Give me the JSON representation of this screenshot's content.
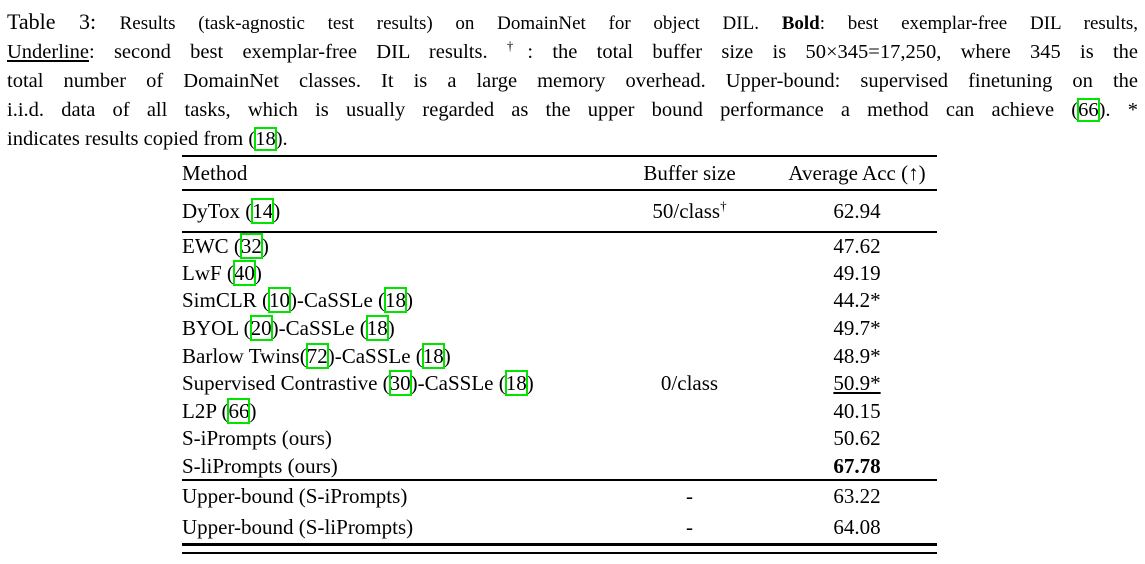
{
  "colors": {
    "background": "#ffffff",
    "text": "#000000",
    "citation_link_box": "#00e400"
  },
  "caption": {
    "lines": [
      [
        {
          "t": "Table 3: ",
          "s": "label"
        },
        {
          "t": "Results (task-agnostic test results) on DomainNet for object DIL. ",
          "s": "small"
        },
        {
          "t": "Bold",
          "s": "small-bold"
        },
        {
          "t": ": best exemplar-free DIL results,",
          "s": "small"
        }
      ],
      [
        {
          "t": "Underline",
          "s": "underline"
        },
        {
          "t": ": second best exemplar-free DIL results. "
        },
        {
          "t": "†",
          "s": "sup"
        },
        {
          "t": ": the total buffer size is 50×345=17,250, where 345 is the"
        }
      ],
      [
        {
          "t": "total number of DomainNet classes. It is a large memory overhead. Upper-bound: supervised finetuning on the"
        }
      ],
      [
        {
          "t": "i.i.d. data of all tasks, which is usually regarded as the upper bound performance a method can achieve ("
        },
        {
          "t": "66",
          "s": "cite"
        },
        {
          "t": "). *"
        }
      ],
      [
        {
          "t": "indicates results copied from ("
        },
        {
          "t": "18",
          "s": "cite"
        },
        {
          "t": ")."
        }
      ]
    ]
  },
  "table": {
    "headers": [
      {
        "id": "method",
        "label": "Method"
      },
      {
        "id": "buffer",
        "label": "Buffer size"
      },
      {
        "id": "acc",
        "label": "Average Acc (↑)"
      }
    ],
    "sections": [
      {
        "name": "buffered-method",
        "rows": [
          {
            "method": [
              {
                "t": "DyTox ("
              },
              {
                "t": "14",
                "s": "cite"
              },
              {
                "t": ")"
              }
            ],
            "buffer": [
              {
                "t": "50/class"
              },
              {
                "t": "†",
                "s": "sup"
              }
            ],
            "acc": [
              {
                "t": "62.94"
              }
            ]
          }
        ]
      },
      {
        "name": "exemplar-free-methods",
        "rows": [
          {
            "method": [
              {
                "t": "EWC ("
              },
              {
                "t": "32",
                "s": "cite"
              },
              {
                "t": ")"
              }
            ],
            "buffer": [],
            "acc": [
              {
                "t": "47.62"
              }
            ]
          },
          {
            "method": [
              {
                "t": "LwF ("
              },
              {
                "t": "40",
                "s": "cite"
              },
              {
                "t": ")"
              }
            ],
            "buffer": [],
            "acc": [
              {
                "t": "49.19"
              }
            ]
          },
          {
            "method": [
              {
                "t": "SimCLR ("
              },
              {
                "t": "10",
                "s": "cite"
              },
              {
                "t": ")-CaSSLe ("
              },
              {
                "t": "18",
                "s": "cite"
              },
              {
                "t": ")"
              }
            ],
            "buffer": [],
            "acc": [
              {
                "t": "44.2*"
              }
            ]
          },
          {
            "method": [
              {
                "t": "BYOL ("
              },
              {
                "t": "20",
                "s": "cite"
              },
              {
                "t": ")-CaSSLe ("
              },
              {
                "t": "18",
                "s": "cite"
              },
              {
                "t": ")"
              }
            ],
            "buffer": [],
            "acc": [
              {
                "t": "49.7*"
              }
            ]
          },
          {
            "method": [
              {
                "t": "Barlow Twins("
              },
              {
                "t": "72",
                "s": "cite"
              },
              {
                "t": ")-CaSSLe ("
              },
              {
                "t": "18",
                "s": "cite"
              },
              {
                "t": ")"
              }
            ],
            "buffer": [],
            "acc": [
              {
                "t": "48.9*"
              }
            ]
          },
          {
            "method": [
              {
                "t": "Supervised Contrastive ("
              },
              {
                "t": "30",
                "s": "cite"
              },
              {
                "t": ")-CaSSLe ("
              },
              {
                "t": "18",
                "s": "cite"
              },
              {
                "t": ")"
              }
            ],
            "buffer": [
              {
                "t": "0/class"
              }
            ],
            "acc": [
              {
                "t": "50.9*",
                "s": "underline"
              }
            ]
          },
          {
            "method": [
              {
                "t": "L2P ("
              },
              {
                "t": "66",
                "s": "cite"
              },
              {
                "t": ")"
              }
            ],
            "buffer": [],
            "acc": [
              {
                "t": "40.15"
              }
            ]
          },
          {
            "method": [
              {
                "t": "S-iPrompts (ours)"
              }
            ],
            "buffer": [],
            "acc": [
              {
                "t": "50.62"
              }
            ]
          },
          {
            "method": [
              {
                "t": "S-liPrompts (ours)"
              }
            ],
            "buffer": [],
            "acc": [
              {
                "t": "67.78",
                "s": "bold"
              }
            ]
          }
        ]
      },
      {
        "name": "upper-bounds",
        "rows": [
          {
            "method": [
              {
                "t": "Upper-bound (S-iPrompts)"
              }
            ],
            "buffer": [
              {
                "t": "-"
              }
            ],
            "acc": [
              {
                "t": "63.22"
              }
            ]
          },
          {
            "method": [
              {
                "t": "Upper-bound (S-liPrompts)"
              }
            ],
            "buffer": [
              {
                "t": "-"
              }
            ],
            "acc": [
              {
                "t": "64.08"
              }
            ]
          }
        ]
      }
    ]
  }
}
